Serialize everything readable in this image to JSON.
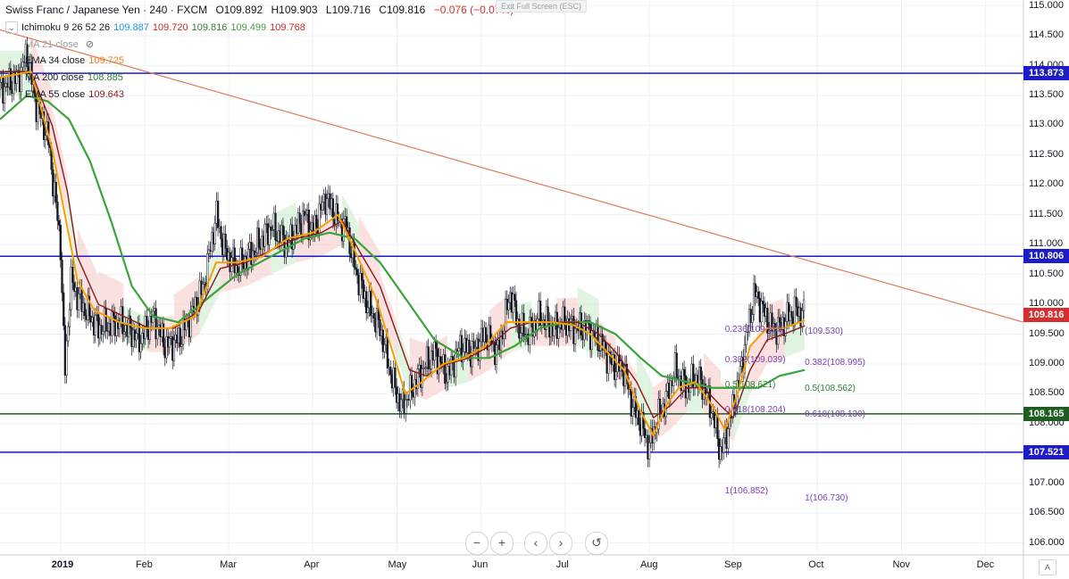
{
  "header": {
    "title": "Swiss Franc / Japanese Yen · 240 · FXCM",
    "ohlc": {
      "o": "O109.892",
      "h": "H109.903",
      "l": "L109.716",
      "c": "C109.816",
      "chg": "−0.076 (−0.07%)"
    }
  },
  "exit_fullscreen": "Exit Full Screen (ESC)",
  "indicators": [
    {
      "name": "Ichimoku 9 26 52 26",
      "values": [
        "109.887",
        "109.720",
        "109.816",
        "109.499",
        "109.768"
      ],
      "colors": [
        "#2196f3",
        "#c62828",
        "#2e7d32",
        "#43a047",
        "#c62828"
      ]
    },
    {
      "name": "MA 21 close",
      "values": [],
      "colors": [
        "#9e9e9e"
      ]
    },
    {
      "name": "EMA 34 close",
      "values": [
        "109.725"
      ],
      "colors": [
        "#f57f17"
      ]
    },
    {
      "name": "MA 200 close",
      "values": [
        "108.885"
      ],
      "colors": [
        "#2e7d32"
      ]
    },
    {
      "name": "EMA 55 close",
      "values": [
        "109.643"
      ],
      "colors": [
        "#8b1a1a"
      ]
    }
  ],
  "colors": {
    "candle": "#131722",
    "ema34": "#f59f00",
    "ema55": "#8b1a1a",
    "ma200": "#3aa33a",
    "trendline": "#e07a5f",
    "h_line_blue": "#1d1dc7",
    "h_line_green": "#1b5e20",
    "cloud_red": "#f7c7c7",
    "cloud_green": "#c9e9c9",
    "fib": "#7b3fb5",
    "fib_green": "#2e7d32"
  },
  "chart_data": {
    "type": "candlestick",
    "title": "Swiss Franc / Japanese Yen · 240 · FXCM",
    "ylim": [
      105.8,
      115.1
    ],
    "y_ticks": [
      "115.000",
      "114.500",
      "114.000",
      "113.500",
      "113.000",
      "112.500",
      "112.000",
      "111.500",
      "111.000",
      "110.500",
      "110.000",
      "109.500",
      "109.000",
      "108.500",
      "108.000",
      "107.500",
      "107.000",
      "106.500",
      "106.000"
    ],
    "x_ticks": [
      "2019",
      "Feb",
      "Mar",
      "Apr",
      "May",
      "Jun",
      "Jul",
      "Aug",
      "Sep",
      "Oct",
      "Nov",
      "Dec"
    ],
    "x_tick_pos": [
      0,
      1,
      2,
      3,
      4,
      5,
      6,
      7,
      8,
      9,
      10,
      11
    ],
    "x_range": [
      -0.72,
      11.45
    ],
    "close_series": [
      [
        -0.72,
        113.6
      ],
      [
        -0.5,
        113.8
      ],
      [
        -0.4,
        114.2
      ],
      [
        -0.3,
        113.4
      ],
      [
        -0.15,
        112.8
      ],
      [
        0,
        111.0
      ],
      [
        0.05,
        108.8
      ],
      [
        0.12,
        110.4
      ],
      [
        0.25,
        110.0
      ],
      [
        0.45,
        109.6
      ],
      [
        0.7,
        109.7
      ],
      [
        0.95,
        109.4
      ],
      [
        1.1,
        109.8
      ],
      [
        1.25,
        109.3
      ],
      [
        1.4,
        109.4
      ],
      [
        1.55,
        109.8
      ],
      [
        1.7,
        110.3
      ],
      [
        1.85,
        111.5
      ],
      [
        1.95,
        110.9
      ],
      [
        2.1,
        110.6
      ],
      [
        2.3,
        110.9
      ],
      [
        2.5,
        111.3
      ],
      [
        2.7,
        111.0
      ],
      [
        2.9,
        111.5
      ],
      [
        3.0,
        111.2
      ],
      [
        3.15,
        111.8
      ],
      [
        3.3,
        111.4
      ],
      [
        3.4,
        111.3
      ],
      [
        3.5,
        110.6
      ],
      [
        3.65,
        110.0
      ],
      [
        3.8,
        109.6
      ],
      [
        3.95,
        108.7
      ],
      [
        4.05,
        108.3
      ],
      [
        4.15,
        108.5
      ],
      [
        4.3,
        108.9
      ],
      [
        4.45,
        109.2
      ],
      [
        4.6,
        108.8
      ],
      [
        4.75,
        109.3
      ],
      [
        4.9,
        109.2
      ],
      [
        5.05,
        109.5
      ],
      [
        5.2,
        109.2
      ],
      [
        5.35,
        110.2
      ],
      [
        5.45,
        109.6
      ],
      [
        5.55,
        109.5
      ],
      [
        5.7,
        109.8
      ],
      [
        5.85,
        109.6
      ],
      [
        6.0,
        109.7
      ],
      [
        6.1,
        109.6
      ],
      [
        6.25,
        109.6
      ],
      [
        6.4,
        109.4
      ],
      [
        6.55,
        109.0
      ],
      [
        6.7,
        108.9
      ],
      [
        6.8,
        108.3
      ],
      [
        6.9,
        108.0
      ],
      [
        7.0,
        107.6
      ],
      [
        7.1,
        108.1
      ],
      [
        7.2,
        108.4
      ],
      [
        7.3,
        108.9
      ],
      [
        7.45,
        108.6
      ],
      [
        7.55,
        108.8
      ],
      [
        7.65,
        108.6
      ],
      [
        7.75,
        108.2
      ],
      [
        7.85,
        107.5
      ],
      [
        7.95,
        108.0
      ],
      [
        8.05,
        108.6
      ],
      [
        8.15,
        109.4
      ],
      [
        8.25,
        110.2
      ],
      [
        8.35,
        109.9
      ],
      [
        8.45,
        109.6
      ],
      [
        8.55,
        109.6
      ],
      [
        8.65,
        109.8
      ],
      [
        8.75,
        109.9
      ],
      [
        8.85,
        109.82
      ]
    ],
    "ema34_series": [
      [
        -0.72,
        113.8
      ],
      [
        -0.35,
        113.9
      ],
      [
        -0.1,
        112.6
      ],
      [
        0.08,
        111.3
      ],
      [
        0.2,
        110.4
      ],
      [
        0.4,
        109.9
      ],
      [
        0.7,
        109.7
      ],
      [
        1.0,
        109.6
      ],
      [
        1.3,
        109.6
      ],
      [
        1.6,
        109.8
      ],
      [
        1.85,
        110.7
      ],
      [
        2.1,
        110.7
      ],
      [
        2.4,
        110.8
      ],
      [
        2.7,
        111.1
      ],
      [
        3.0,
        111.2
      ],
      [
        3.3,
        111.5
      ],
      [
        3.5,
        110.9
      ],
      [
        3.75,
        110.1
      ],
      [
        3.95,
        109.2
      ],
      [
        4.1,
        108.5
      ],
      [
        4.3,
        108.7
      ],
      [
        4.55,
        109.0
      ],
      [
        4.8,
        109.1
      ],
      [
        5.05,
        109.3
      ],
      [
        5.3,
        109.7
      ],
      [
        5.55,
        109.7
      ],
      [
        5.85,
        109.7
      ],
      [
        6.1,
        109.65
      ],
      [
        6.3,
        109.5
      ],
      [
        6.5,
        109.2
      ],
      [
        6.7,
        108.9
      ],
      [
        6.9,
        108.2
      ],
      [
        7.05,
        107.8
      ],
      [
        7.2,
        108.3
      ],
      [
        7.35,
        108.6
      ],
      [
        7.55,
        108.7
      ],
      [
        7.75,
        108.3
      ],
      [
        7.9,
        107.9
      ],
      [
        8.05,
        108.5
      ],
      [
        8.2,
        109.3
      ],
      [
        8.4,
        109.6
      ],
      [
        8.6,
        109.6
      ],
      [
        8.85,
        109.73
      ]
    ],
    "ema55_series": [
      [
        -0.72,
        113.9
      ],
      [
        -0.35,
        113.9
      ],
      [
        -0.1,
        113.0
      ],
      [
        0.08,
        111.9
      ],
      [
        0.2,
        110.8
      ],
      [
        0.45,
        110.0
      ],
      [
        0.75,
        109.8
      ],
      [
        1.05,
        109.6
      ],
      [
        1.35,
        109.6
      ],
      [
        1.65,
        109.9
      ],
      [
        1.9,
        110.6
      ],
      [
        2.2,
        110.7
      ],
      [
        2.5,
        110.9
      ],
      [
        2.8,
        111.1
      ],
      [
        3.1,
        111.2
      ],
      [
        3.35,
        111.4
      ],
      [
        3.55,
        110.9
      ],
      [
        3.8,
        110.3
      ],
      [
        4.0,
        109.5
      ],
      [
        4.15,
        108.9
      ],
      [
        4.35,
        108.8
      ],
      [
        4.6,
        109.0
      ],
      [
        4.85,
        109.1
      ],
      [
        5.1,
        109.3
      ],
      [
        5.35,
        109.6
      ],
      [
        5.6,
        109.7
      ],
      [
        5.9,
        109.7
      ],
      [
        6.15,
        109.7
      ],
      [
        6.4,
        109.5
      ],
      [
        6.6,
        109.2
      ],
      [
        6.85,
        108.7
      ],
      [
        7.05,
        108.1
      ],
      [
        7.25,
        108.3
      ],
      [
        7.45,
        108.6
      ],
      [
        7.65,
        108.6
      ],
      [
        7.85,
        108.3
      ],
      [
        8.0,
        108.1
      ],
      [
        8.2,
        108.9
      ],
      [
        8.4,
        109.4
      ],
      [
        8.6,
        109.5
      ],
      [
        8.85,
        109.64
      ]
    ],
    "ma200_series": [
      [
        -0.72,
        113.1
      ],
      [
        -0.4,
        113.5
      ],
      [
        -0.15,
        113.4
      ],
      [
        0.1,
        113.1
      ],
      [
        0.35,
        112.4
      ],
      [
        0.6,
        111.4
      ],
      [
        0.85,
        110.3
      ],
      [
        1.1,
        109.8
      ],
      [
        1.4,
        109.7
      ],
      [
        1.75,
        110.1
      ],
      [
        2.1,
        110.5
      ],
      [
        2.5,
        110.8
      ],
      [
        2.9,
        111.1
      ],
      [
        3.2,
        111.2
      ],
      [
        3.5,
        111.1
      ],
      [
        3.8,
        110.7
      ],
      [
        4.1,
        110.1
      ],
      [
        4.45,
        109.4
      ],
      [
        4.8,
        109.1
      ],
      [
        5.1,
        109.1
      ],
      [
        5.4,
        109.3
      ],
      [
        5.7,
        109.6
      ],
      [
        6.0,
        109.7
      ],
      [
        6.3,
        109.7
      ],
      [
        6.6,
        109.5
      ],
      [
        6.9,
        109.1
      ],
      [
        7.15,
        108.8
      ],
      [
        7.45,
        108.7
      ],
      [
        7.75,
        108.6
      ],
      [
        8.0,
        108.6
      ],
      [
        8.3,
        108.6
      ],
      [
        8.55,
        108.8
      ],
      [
        8.85,
        108.9
      ]
    ],
    "trendline": [
      [
        -0.72,
        114.6
      ],
      [
        11.45,
        109.7
      ]
    ],
    "horizontal_levels": [
      {
        "value": 113.873,
        "label": "113.873",
        "color": "#1d1dc7"
      },
      {
        "value": 110.806,
        "label": "110.806",
        "color": "#1d1dc7"
      },
      {
        "value": 108.165,
        "label": "108.165",
        "color": "#1b5e20"
      },
      {
        "value": 107.521,
        "label": "107.521",
        "color": "#1d1dc7"
      }
    ],
    "current_price": {
      "value": 109.816,
      "label": "109.816",
      "color": "#d32f2f"
    },
    "fib_labels": [
      {
        "text": "0.236(109.555)",
        "x": 7.9,
        "y": 109.555,
        "color": "#7b3fb5"
      },
      {
        "text": "(109.530)",
        "x": 8.85,
        "y": 109.53,
        "color": "#7b3fb5"
      },
      {
        "text": "0.382(109.039)",
        "x": 7.9,
        "y": 109.039,
        "color": "#7b3fb5"
      },
      {
        "text": "0.382(108.995)",
        "x": 8.85,
        "y": 108.995,
        "color": "#7b3fb5"
      },
      {
        "text": "0.5(108.621)",
        "x": 7.9,
        "y": 108.621,
        "color": "#2e7d32"
      },
      {
        "text": "0.5(108.562)",
        "x": 8.85,
        "y": 108.562,
        "color": "#2e7d32"
      },
      {
        "text": "0.618(108.204)",
        "x": 7.9,
        "y": 108.204,
        "color": "#7b3fb5"
      },
      {
        "text": "0.618(108.130)",
        "x": 8.85,
        "y": 108.13,
        "color": "#7b3fb5"
      },
      {
        "text": "1(106.852)",
        "x": 7.9,
        "y": 106.852,
        "color": "#7b3fb5"
      },
      {
        "text": "1(106.730)",
        "x": 8.85,
        "y": 106.73,
        "color": "#7b3fb5"
      }
    ],
    "grid": true
  },
  "nav": {
    "zoom_out": "−",
    "zoom_in": "+",
    "scroll_left": "‹",
    "scroll_right": "›",
    "reset": "↺"
  },
  "auto_label": "A"
}
